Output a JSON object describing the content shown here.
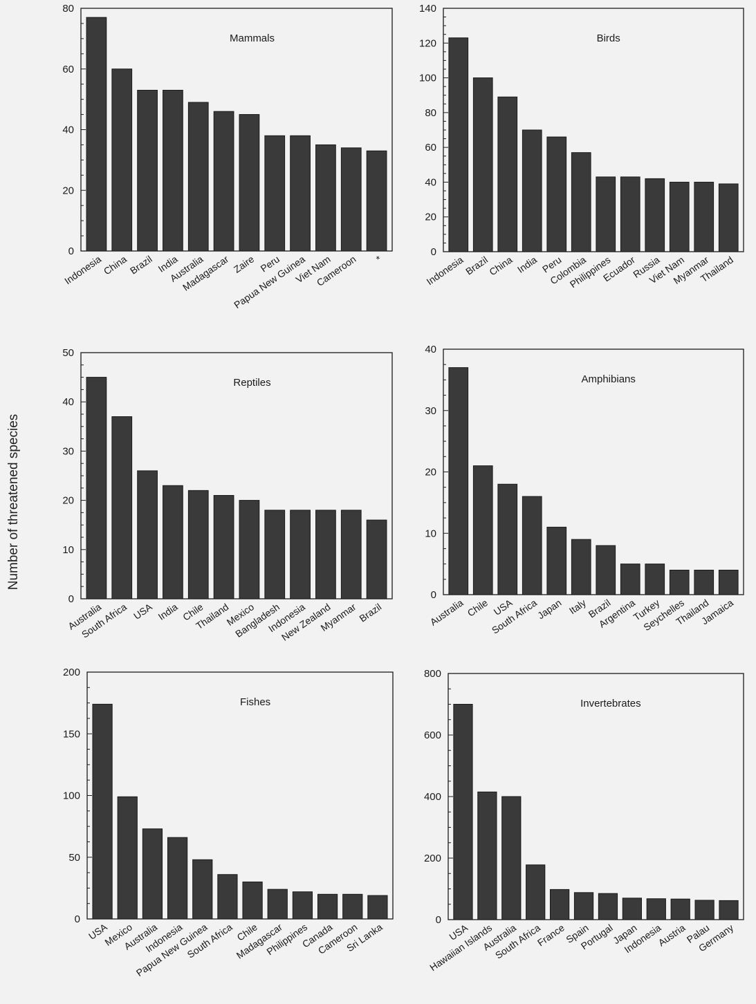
{
  "figure": {
    "ylabel": "Number of threatened species"
  },
  "chart_data": [
    {
      "type": "bar",
      "title": "Mammals",
      "xlabel": "",
      "ylabel": "Number of threatened species",
      "ylim": [
        0,
        80
      ],
      "yticks": [
        0,
        20,
        40,
        60,
        80
      ],
      "categories": [
        "Indonesia",
        "China",
        "Brazil",
        "India",
        "Australia",
        "Madagascar",
        "Zaire",
        "Peru",
        "Papua New Guinea",
        "Viet Nam",
        "Cameroon",
        "*"
      ],
      "values": [
        77,
        60,
        53,
        53,
        49,
        46,
        45,
        38,
        38,
        35,
        34,
        33
      ]
    },
    {
      "type": "bar",
      "title": "Birds",
      "xlabel": "",
      "ylabel": "Number of threatened species",
      "ylim": [
        0,
        140
      ],
      "yticks": [
        0,
        20,
        40,
        60,
        80,
        100,
        120,
        140
      ],
      "categories": [
        "Indonesia",
        "Brazil",
        "China",
        "India",
        "Peru",
        "Colombia",
        "Philippines",
        "Ecuador",
        "Russia",
        "Viet Nam",
        "Myanmar",
        "Thailand"
      ],
      "values": [
        123,
        100,
        89,
        70,
        66,
        57,
        43,
        43,
        42,
        40,
        40,
        39
      ]
    },
    {
      "type": "bar",
      "title": "Reptiles",
      "xlabel": "",
      "ylabel": "Number of threatened species",
      "ylim": [
        0,
        50
      ],
      "yticks": [
        0,
        10,
        20,
        30,
        40,
        50
      ],
      "categories": [
        "Australia",
        "South Africa",
        "USA",
        "India",
        "Chile",
        "Thailand",
        "Mexico",
        "Bangladesh",
        "Indonesia",
        "New Zealand",
        "Myanmar",
        "Brazil"
      ],
      "values": [
        45,
        37,
        26,
        23,
        22,
        21,
        20,
        18,
        18,
        18,
        18,
        16
      ]
    },
    {
      "type": "bar",
      "title": "Amphibians",
      "xlabel": "",
      "ylabel": "Number of threatened species",
      "ylim": [
        0,
        40
      ],
      "yticks": [
        0,
        10,
        20,
        30,
        40
      ],
      "categories": [
        "Australia",
        "Chile",
        "USA",
        "South Africa",
        "Japan",
        "Italy",
        "Brazil",
        "Argentina",
        "Turkey",
        "Seychelles",
        "Thailand",
        "Jamaica"
      ],
      "values": [
        37,
        21,
        18,
        16,
        11,
        9,
        8,
        5,
        5,
        4,
        4,
        4
      ]
    },
    {
      "type": "bar",
      "title": "Fishes",
      "xlabel": "",
      "ylabel": "Number of threatened species",
      "ylim": [
        0,
        200
      ],
      "yticks": [
        0,
        50,
        100,
        150,
        200
      ],
      "categories": [
        "USA",
        "Mexico",
        "Australia",
        "Indonesia",
        "Papua New Guinea",
        "South Africa",
        "Chile",
        "Madagascar",
        "Philippines",
        "Canada",
        "Cameroon",
        "Sri Lanka"
      ],
      "values": [
        174,
        99,
        73,
        66,
        48,
        36,
        30,
        24,
        22,
        20,
        20,
        19
      ]
    },
    {
      "type": "bar",
      "title": "Invertebrates",
      "xlabel": "",
      "ylabel": "Number of threatened species",
      "ylim": [
        0,
        800
      ],
      "yticks": [
        0,
        200,
        400,
        600,
        800
      ],
      "categories": [
        "USA",
        "Hawaiian Islands",
        "Australia",
        "South Africa",
        "France",
        "Spain",
        "Portugal",
        "Japan",
        "Indonesia",
        "Austria",
        "Palau",
        "Germany"
      ],
      "values": [
        700,
        415,
        400,
        178,
        98,
        88,
        85,
        70,
        68,
        67,
        63,
        62
      ]
    }
  ]
}
